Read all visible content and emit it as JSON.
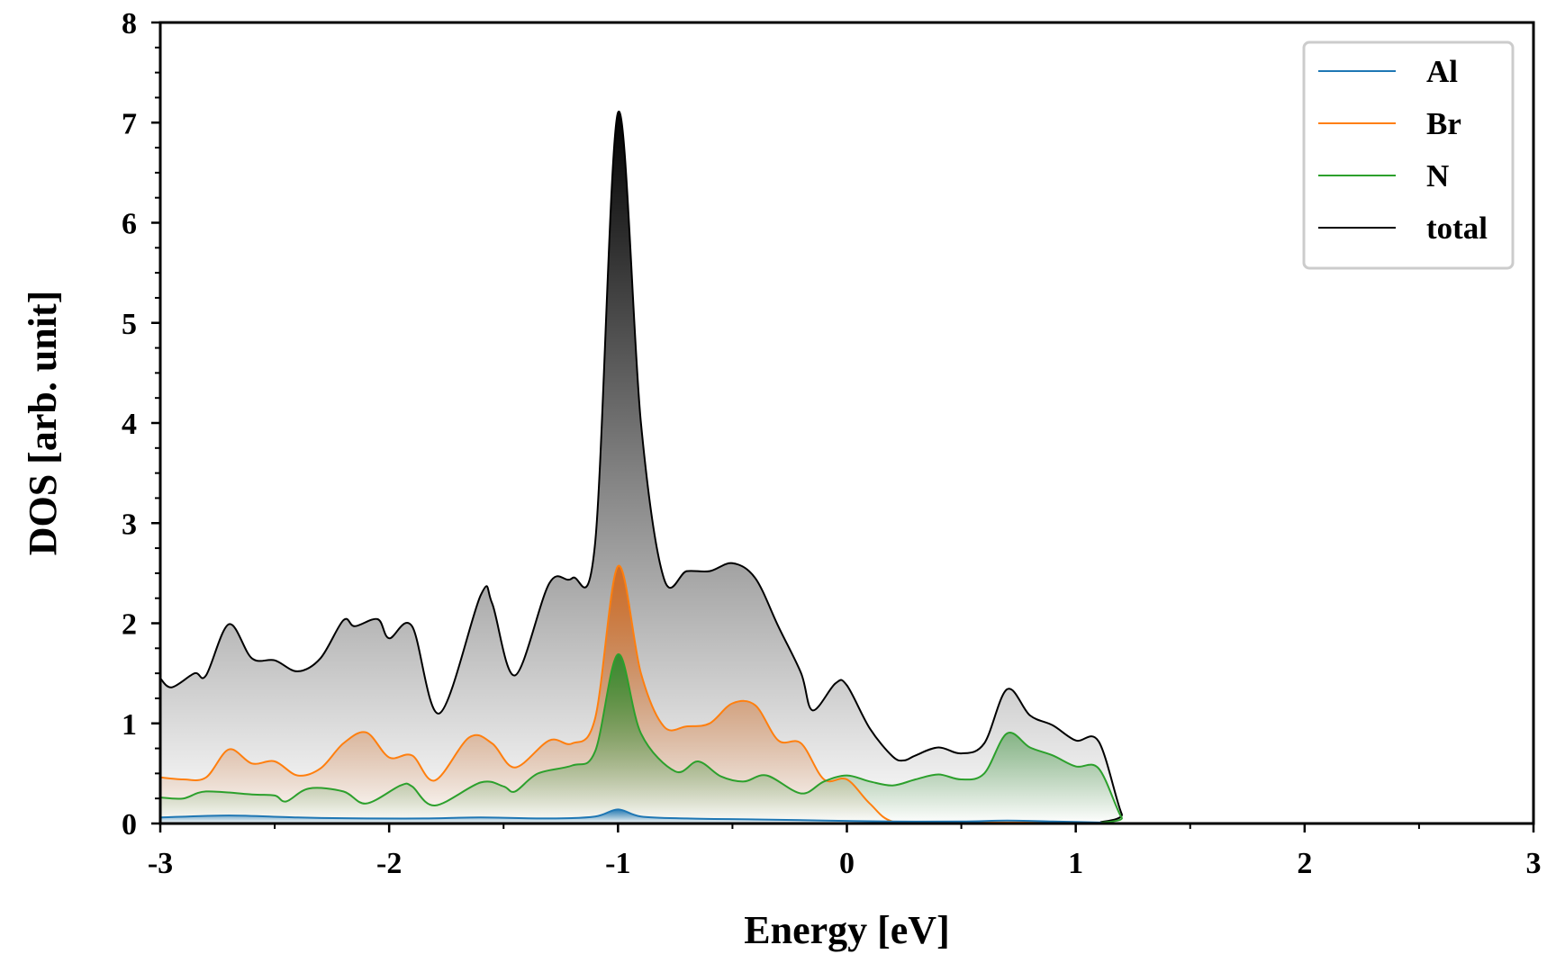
{
  "chart_data": {
    "type": "area",
    "title": "",
    "xlabel": "Energy [eV]",
    "ylabel": "DOS [arb. unit]",
    "xlim": [
      -3,
      3
    ],
    "ylim": [
      0,
      8
    ],
    "xticks": [
      -3,
      -2,
      -1,
      0,
      1,
      2,
      3
    ],
    "yticks": [
      0,
      1,
      2,
      3,
      4,
      5,
      6,
      7,
      8
    ],
    "xtick_labels": [
      "-3",
      "-2",
      "-1",
      "0",
      "1",
      "2",
      "3"
    ],
    "ytick_labels": [
      "0",
      "1",
      "2",
      "3",
      "4",
      "5",
      "6",
      "7",
      "8"
    ],
    "x_minor_step": 0.5,
    "y_minor_step": 0.25,
    "grid": false,
    "legend_position": "top-right",
    "series": [
      {
        "name": "Al",
        "color": "#1f77b4",
        "fill_color": "#1f77b4",
        "points": [
          [
            -3.0,
            0.06
          ],
          [
            -2.7,
            0.08
          ],
          [
            -2.4,
            0.06
          ],
          [
            -2.1,
            0.05
          ],
          [
            -1.85,
            0.05
          ],
          [
            -1.6,
            0.06
          ],
          [
            -1.3,
            0.05
          ],
          [
            -1.1,
            0.07
          ],
          [
            -1.0,
            0.14
          ],
          [
            -0.9,
            0.07
          ],
          [
            -0.7,
            0.05
          ],
          [
            -0.4,
            0.04
          ],
          [
            -0.1,
            0.03
          ],
          [
            0.2,
            0.02
          ],
          [
            0.5,
            0.02
          ],
          [
            0.7,
            0.03
          ],
          [
            0.9,
            0.02
          ],
          [
            1.1,
            0.01
          ],
          [
            1.25,
            0.0
          ],
          [
            3.0,
            0.0
          ]
        ]
      },
      {
        "name": "Br",
        "color": "#ff7f0e",
        "fill_color": "#d2691e",
        "points": [
          [
            -3.0,
            0.46
          ],
          [
            -2.9,
            0.44
          ],
          [
            -2.8,
            0.46
          ],
          [
            -2.7,
            0.74
          ],
          [
            -2.6,
            0.6
          ],
          [
            -2.5,
            0.62
          ],
          [
            -2.4,
            0.48
          ],
          [
            -2.3,
            0.55
          ],
          [
            -2.2,
            0.8
          ],
          [
            -2.1,
            0.91
          ],
          [
            -2.0,
            0.66
          ],
          [
            -1.9,
            0.68
          ],
          [
            -1.8,
            0.43
          ],
          [
            -1.65,
            0.86
          ],
          [
            -1.55,
            0.8
          ],
          [
            -1.45,
            0.56
          ],
          [
            -1.3,
            0.83
          ],
          [
            -1.2,
            0.8
          ],
          [
            -1.1,
            1.05
          ],
          [
            -1.0,
            2.57
          ],
          [
            -0.9,
            1.5
          ],
          [
            -0.8,
            0.97
          ],
          [
            -0.7,
            0.97
          ],
          [
            -0.6,
            1.0
          ],
          [
            -0.5,
            1.2
          ],
          [
            -0.4,
            1.18
          ],
          [
            -0.3,
            0.83
          ],
          [
            -0.2,
            0.8
          ],
          [
            -0.1,
            0.44
          ],
          [
            0.0,
            0.44
          ],
          [
            0.1,
            0.2
          ],
          [
            0.2,
            0.02
          ],
          [
            0.4,
            0.01
          ],
          [
            1.0,
            0.01
          ],
          [
            1.2,
            0.0
          ],
          [
            3.0,
            0.0
          ]
        ]
      },
      {
        "name": "N",
        "color": "#2ca02c",
        "fill_color": "#2e8b2e",
        "points": [
          [
            -3.0,
            0.26
          ],
          [
            -2.9,
            0.25
          ],
          [
            -2.8,
            0.32
          ],
          [
            -2.6,
            0.29
          ],
          [
            -2.5,
            0.28
          ],
          [
            -2.45,
            0.22
          ],
          [
            -2.35,
            0.35
          ],
          [
            -2.2,
            0.32
          ],
          [
            -2.1,
            0.2
          ],
          [
            -1.95,
            0.38
          ],
          [
            -1.9,
            0.37
          ],
          [
            -1.8,
            0.18
          ],
          [
            -1.6,
            0.41
          ],
          [
            -1.5,
            0.37
          ],
          [
            -1.45,
            0.32
          ],
          [
            -1.35,
            0.5
          ],
          [
            -1.2,
            0.58
          ],
          [
            -1.1,
            0.72
          ],
          [
            -1.0,
            1.69
          ],
          [
            -0.9,
            0.9
          ],
          [
            -0.75,
            0.52
          ],
          [
            -0.65,
            0.62
          ],
          [
            -0.55,
            0.47
          ],
          [
            -0.45,
            0.42
          ],
          [
            -0.35,
            0.48
          ],
          [
            -0.2,
            0.3
          ],
          [
            -0.1,
            0.42
          ],
          [
            0.0,
            0.48
          ],
          [
            0.1,
            0.42
          ],
          [
            0.2,
            0.38
          ],
          [
            0.3,
            0.44
          ],
          [
            0.4,
            0.49
          ],
          [
            0.5,
            0.44
          ],
          [
            0.6,
            0.5
          ],
          [
            0.7,
            0.9
          ],
          [
            0.8,
            0.76
          ],
          [
            0.9,
            0.68
          ],
          [
            1.0,
            0.57
          ],
          [
            1.1,
            0.55
          ],
          [
            1.2,
            0.06
          ],
          [
            1.25,
            0.0
          ],
          [
            3.0,
            0.0
          ]
        ]
      },
      {
        "name": "total",
        "color": "#000000",
        "fill_color": "#000000",
        "points": [
          [
            -3.0,
            1.45
          ],
          [
            -2.95,
            1.36
          ],
          [
            -2.85,
            1.5
          ],
          [
            -2.8,
            1.48
          ],
          [
            -2.7,
            1.99
          ],
          [
            -2.6,
            1.65
          ],
          [
            -2.5,
            1.63
          ],
          [
            -2.4,
            1.52
          ],
          [
            -2.3,
            1.65
          ],
          [
            -2.2,
            2.03
          ],
          [
            -2.15,
            1.97
          ],
          [
            -2.05,
            2.04
          ],
          [
            -2.0,
            1.85
          ],
          [
            -1.9,
            1.97
          ],
          [
            -1.78,
            1.1
          ],
          [
            -1.6,
            2.28
          ],
          [
            -1.55,
            2.2
          ],
          [
            -1.45,
            1.48
          ],
          [
            -1.3,
            2.4
          ],
          [
            -1.2,
            2.45
          ],
          [
            -1.1,
            2.8
          ],
          [
            -1.0,
            7.1
          ],
          [
            -0.9,
            4.0
          ],
          [
            -0.8,
            2.45
          ],
          [
            -0.7,
            2.52
          ],
          [
            -0.6,
            2.52
          ],
          [
            -0.5,
            2.6
          ],
          [
            -0.4,
            2.45
          ],
          [
            -0.3,
            1.97
          ],
          [
            -0.2,
            1.5
          ],
          [
            -0.15,
            1.13
          ],
          [
            -0.05,
            1.4
          ],
          [
            0.0,
            1.38
          ],
          [
            0.1,
            0.95
          ],
          [
            0.2,
            0.67
          ],
          [
            0.25,
            0.63
          ],
          [
            0.3,
            0.68
          ],
          [
            0.4,
            0.76
          ],
          [
            0.5,
            0.7
          ],
          [
            0.6,
            0.8
          ],
          [
            0.7,
            1.34
          ],
          [
            0.8,
            1.08
          ],
          [
            0.9,
            0.98
          ],
          [
            1.0,
            0.83
          ],
          [
            1.1,
            0.82
          ],
          [
            1.2,
            0.1
          ],
          [
            1.25,
            0.0
          ],
          [
            3.0,
            0.0
          ]
        ]
      }
    ]
  }
}
